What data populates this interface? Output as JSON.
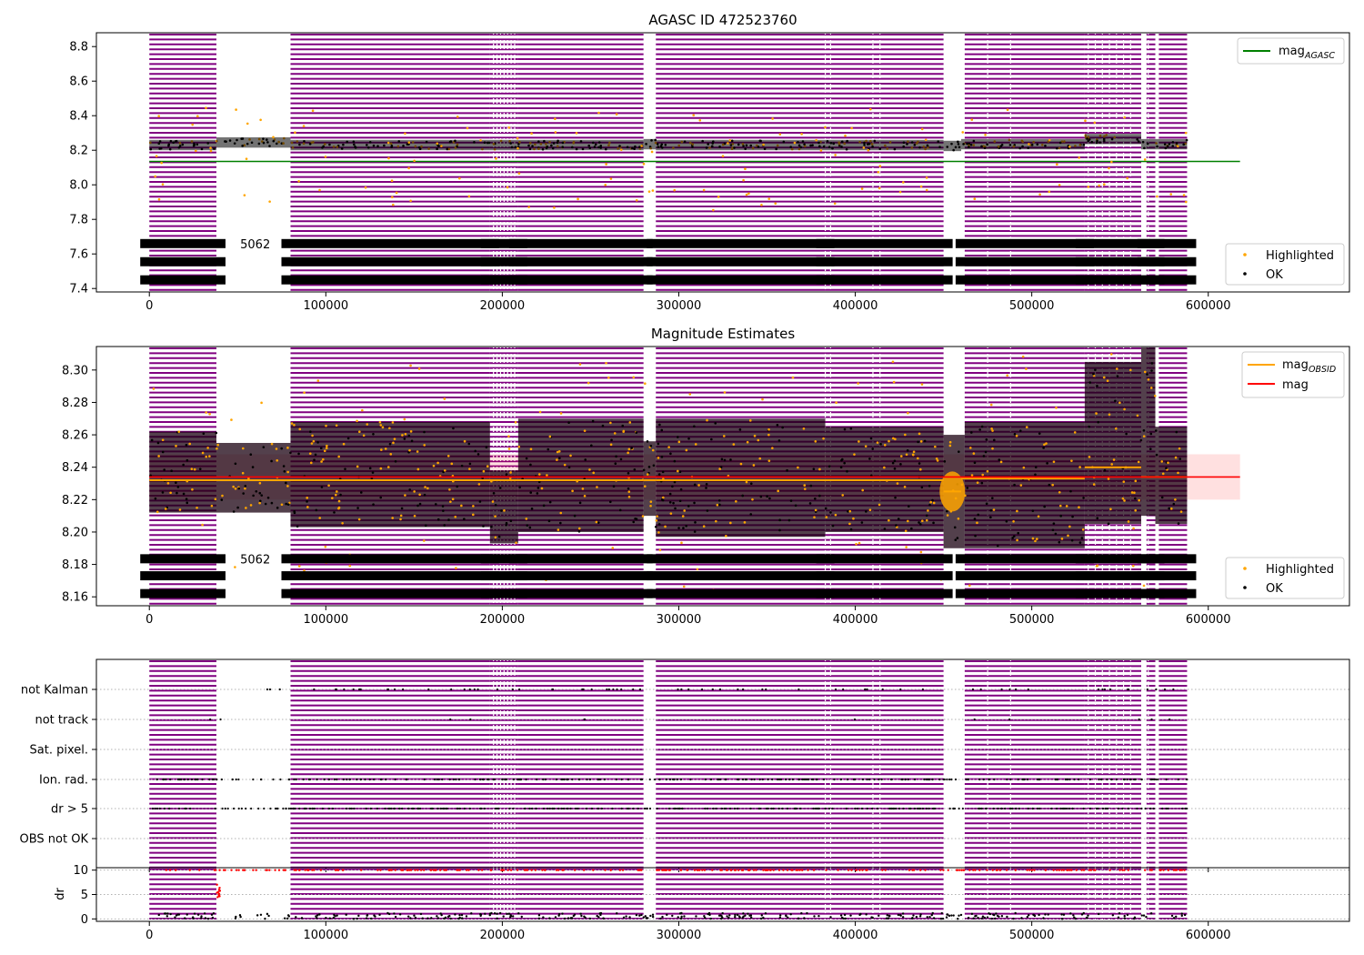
{
  "chart_data": [
    {
      "type": "scatter",
      "title": "AGASC ID 472523760",
      "xlabel": "",
      "ylabel": "",
      "xlim": [
        -30000,
        680000
      ],
      "ylim": [
        7.38,
        8.88
      ],
      "xticks": [
        0,
        100000,
        200000,
        300000,
        400000,
        500000,
        600000
      ],
      "xtick_labels": [
        "0",
        "100000",
        "200000",
        "300000",
        "400000",
        "500000",
        "600000"
      ],
      "yticks": [
        7.4,
        7.6,
        7.8,
        8.0,
        8.2,
        8.4,
        8.6,
        8.8
      ],
      "ytick_labels": [
        "7.4",
        "7.6",
        "7.8",
        "8.0",
        "8.2",
        "8.4",
        "8.6",
        "8.8"
      ],
      "mag_agasc": 8.135,
      "mag_level_segments": [
        {
          "x": [
            0,
            38000
          ],
          "y": 8.23
        },
        {
          "x": [
            38000,
            80000
          ],
          "y": 8.245
        },
        {
          "x": [
            80000,
            280000
          ],
          "y": 8.23
        },
        {
          "x": [
            280000,
            287000
          ],
          "y": 8.235
        },
        {
          "x": [
            287000,
            450000
          ],
          "y": 8.23
        },
        {
          "x": [
            450000,
            460000
          ],
          "y": 8.225
        },
        {
          "x": [
            460000,
            530000
          ],
          "y": 8.235
        },
        {
          "x": [
            530000,
            562000
          ],
          "y": 8.265
        },
        {
          "x": [
            562000,
            588000
          ],
          "y": 8.235
        }
      ],
      "series": [
        {
          "name": "mag_AGASC",
          "color": "#008000",
          "kind": "hline"
        },
        {
          "name": "Highlighted",
          "color": "#ffa500",
          "kind": "scatter"
        },
        {
          "name": "OK",
          "color": "#000000",
          "kind": "scatter"
        }
      ],
      "legend_upper": [
        {
          "label": "mag",
          "sub": "AGASC",
          "color": "#008000"
        }
      ],
      "legend_lower": [
        {
          "label": "Highlighted",
          "color": "#ffa500"
        },
        {
          "label": "OK",
          "color": "#000000"
        }
      ],
      "legend_position": "right",
      "obsid_label_rows": [
        7.66,
        7.555,
        7.45
      ],
      "obsid_gap_label": "5062",
      "obsid_gap_label_x": 60000,
      "grid": false
    },
    {
      "type": "scatter",
      "title": "Magnitude Estimates",
      "xlabel": "",
      "ylabel": "",
      "xlim": [
        -30000,
        680000
      ],
      "ylim": [
        8.1545,
        8.3145
      ],
      "xticks": [
        0,
        100000,
        200000,
        300000,
        400000,
        500000,
        600000
      ],
      "xtick_labels": [
        "0",
        "100000",
        "200000",
        "300000",
        "400000",
        "500000",
        "600000"
      ],
      "yticks": [
        8.16,
        8.18,
        8.2,
        8.22,
        8.24,
        8.26,
        8.28,
        8.3
      ],
      "ytick_labels": [
        "8.16",
        "8.18",
        "8.20",
        "8.22",
        "8.24",
        "8.26",
        "8.28",
        "8.30"
      ],
      "mag": 8.234,
      "mag_band": [
        8.22,
        8.248
      ],
      "mag_obsid_segments": [
        {
          "x": [
            0,
            38000
          ],
          "y": 8.232
        },
        {
          "x": [
            38000,
            80000
          ],
          "y": 8.232
        },
        {
          "x": [
            80000,
            280000
          ],
          "y": 8.232
        },
        {
          "x": [
            280000,
            287000
          ],
          "y": 8.232
        },
        {
          "x": [
            287000,
            450000
          ],
          "y": 8.232
        },
        {
          "x": [
            450000,
            460000
          ],
          "y": 8.225
        },
        {
          "x": [
            460000,
            530000
          ],
          "y": 8.233
        },
        {
          "x": [
            530000,
            562000
          ],
          "y": 8.24
        },
        {
          "x": [
            562000,
            588000
          ],
          "y": 8.234
        }
      ],
      "series": [
        {
          "name": "mag_OBSID",
          "color": "#ffa500",
          "kind": "step"
        },
        {
          "name": "mag",
          "color": "#ff0000",
          "kind": "hline"
        },
        {
          "name": "Highlighted",
          "color": "#ffa500",
          "kind": "scatter"
        },
        {
          "name": "OK",
          "color": "#000000",
          "kind": "scatter"
        }
      ],
      "legend_upper": [
        {
          "label": "mag",
          "sub": "OBSID",
          "color": "#ffa500"
        },
        {
          "label": "mag",
          "sub": "",
          "color": "#ff0000"
        }
      ],
      "legend_lower": [
        {
          "label": "Highlighted",
          "color": "#ffa500"
        },
        {
          "label": "OK",
          "color": "#000000"
        }
      ],
      "legend_position": "right",
      "obsid_label_rows": [
        8.1835,
        8.173,
        8.162
      ],
      "obsid_gap_label": "5062",
      "obsid_gap_label_x": 60000,
      "grid": false
    },
    {
      "type": "scatter",
      "title": "",
      "xlabel": "",
      "ylabel": "",
      "xlim": [
        -30000,
        680000
      ],
      "categories": [
        "not Kalman",
        "not track",
        "Sat. pixel.",
        "Ion. rad.",
        "dr > 5",
        "OBS not OK"
      ],
      "category_hits": {
        "not Kalman": "sparse",
        "not track": "rare",
        "Sat. pixel.": "none",
        "Ion. rad.": "frequent",
        "dr > 5": "frequent",
        "OBS not OK": "none"
      },
      "grid": true
    },
    {
      "type": "scatter",
      "title": "",
      "xlabel": "",
      "ylabel": "dr",
      "xlim": [
        -30000,
        680000
      ],
      "ylim": [
        -0.5,
        10.5
      ],
      "yticks": [
        0,
        5,
        10
      ],
      "ytick_labels": [
        "0",
        "5",
        "10"
      ],
      "dr_clip": 10,
      "xticks": [
        0,
        100000,
        200000,
        300000,
        400000,
        500000,
        600000
      ],
      "xtick_labels": [
        "0",
        "100000",
        "200000",
        "300000",
        "400000",
        "500000",
        "600000"
      ],
      "grid": true
    }
  ],
  "shared": {
    "highlight_color": "#800080",
    "observation_spans": [
      [
        0,
        38000
      ],
      [
        80000,
        193000
      ],
      [
        193000,
        209000
      ],
      [
        209000,
        280000
      ],
      [
        287000,
        383000
      ],
      [
        383000,
        450000
      ],
      [
        462000,
        530000
      ],
      [
        530000,
        562000
      ],
      [
        565000,
        570000
      ],
      [
        572000,
        588000
      ]
    ],
    "observation_gaps": [
      [
        38000,
        80000
      ],
      [
        280000,
        287000
      ],
      [
        450000,
        462000
      ]
    ],
    "mag_min": 8.21,
    "mag_max": 8.26
  }
}
